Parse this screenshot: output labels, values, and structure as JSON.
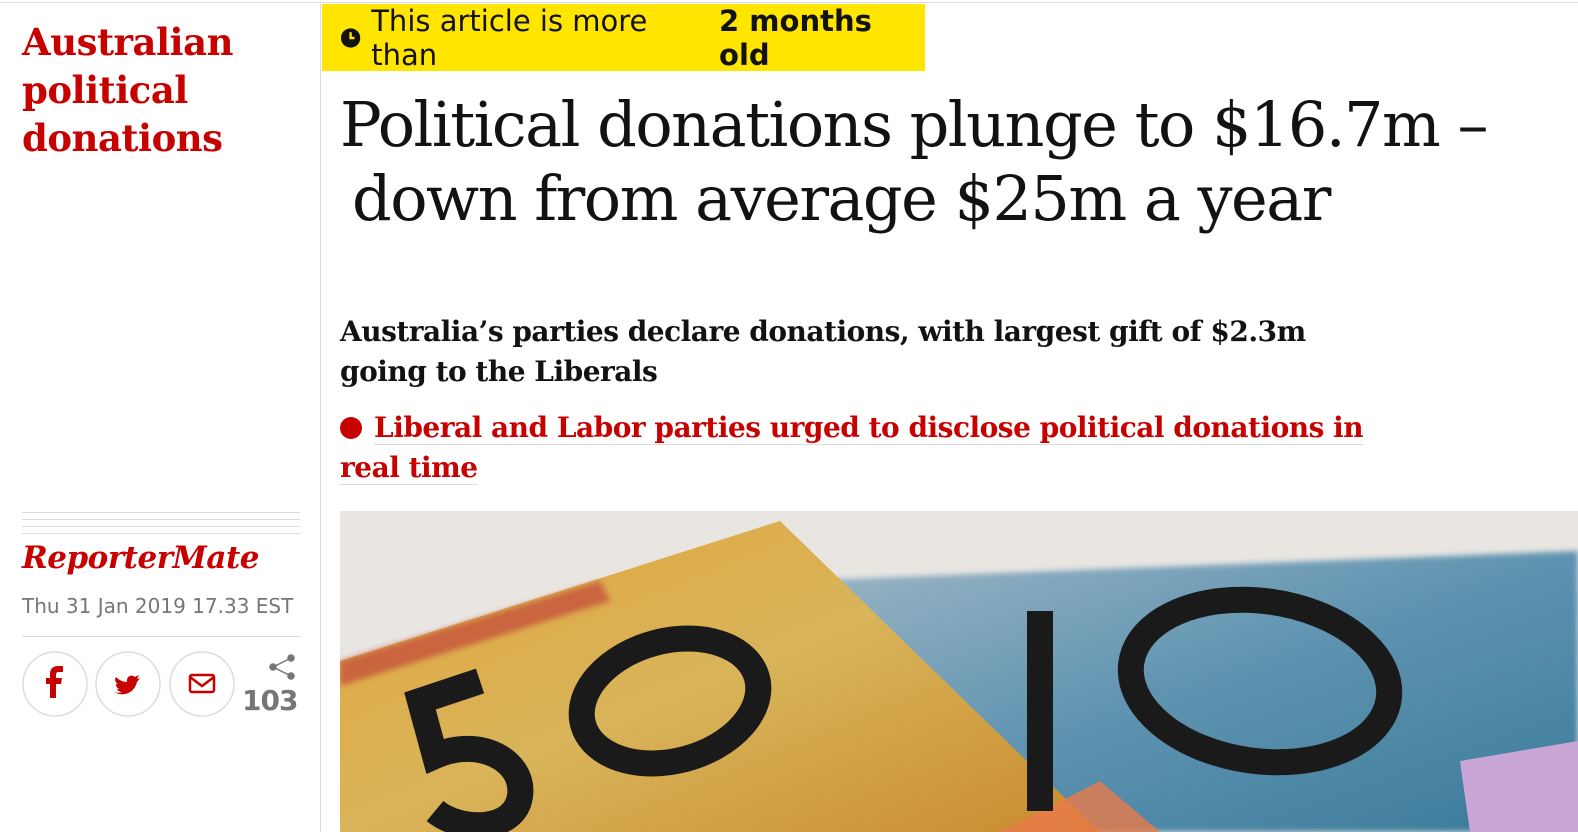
{
  "section": {
    "lines": [
      "Australian",
      "political",
      "donations"
    ]
  },
  "age_warning": {
    "text": "This article is more than",
    "age": "2 months old"
  },
  "headline": {
    "lines": [
      "Political donations plunge to $16.7m –",
      "down from average $25m a year"
    ]
  },
  "standfirst": {
    "lines": [
      "Australia’s parties declare donations, with largest gift of $2.3m",
      "going to the Liberals"
    ]
  },
  "related_link": {
    "lines": [
      "Liberal and Labor parties urged to disclose political donations in",
      "real time"
    ]
  },
  "byline": "ReporterMate",
  "date": "Thu 31 Jan 2019 17.33 EST",
  "share_count": "103"
}
